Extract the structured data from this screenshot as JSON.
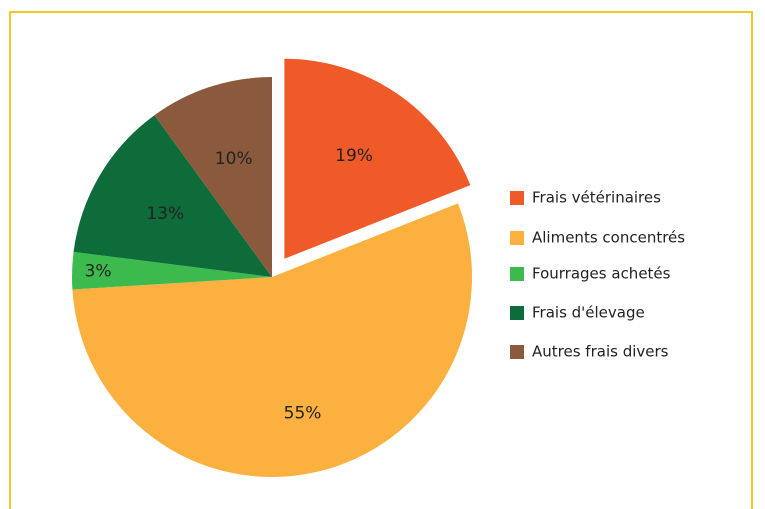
{
  "chart_data": {
    "type": "pie",
    "categories": [
      "Frais vétérinaires",
      "Aliments concentrés",
      "Fourrages achetés",
      "Frais d'élevage",
      "Autres frais divers"
    ],
    "values": [
      19,
      55,
      3,
      13,
      10
    ],
    "value_labels": [
      "19%",
      "55%",
      "3%",
      "13%",
      "10%"
    ],
    "colors": [
      "#ef5a28",
      "#fbb040",
      "#3dba4e",
      "#0e6b3a",
      "#8b5a3c"
    ],
    "exploded": [
      true,
      false,
      false,
      false,
      false
    ],
    "legend": "right"
  }
}
